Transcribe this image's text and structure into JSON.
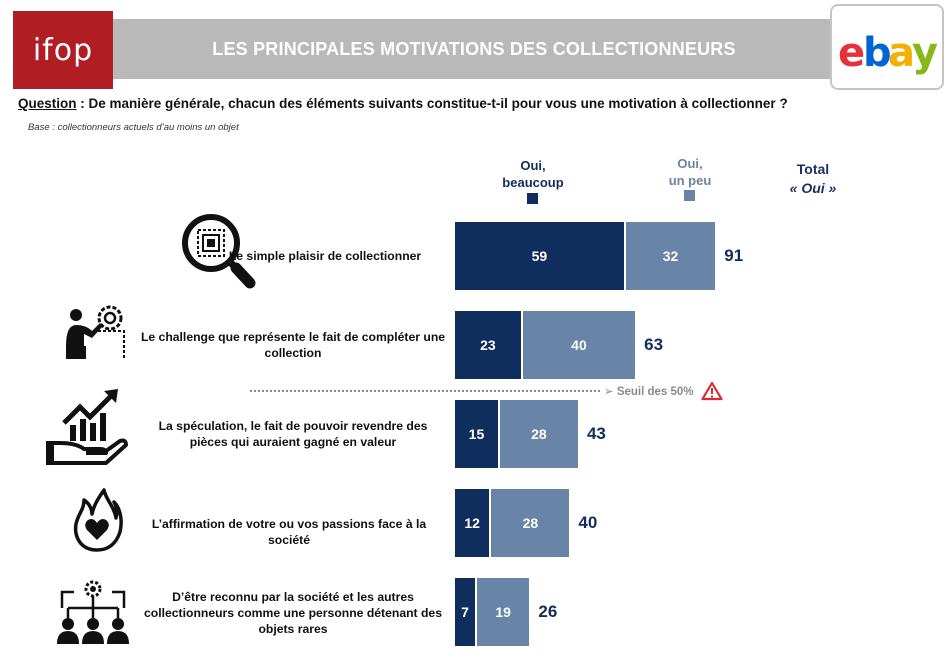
{
  "header": {
    "ifop_logo_text": "ifop",
    "title": "LES PRINCIPALES MOTIVATIONS DES COLLECTIONNEURS",
    "ebay_logo": [
      "e",
      "b",
      "a",
      "y"
    ],
    "ebay_colors": [
      "#e53238",
      "#0064d2",
      "#f5af02",
      "#86b817"
    ]
  },
  "question": {
    "label": "Question",
    "text": " : De manière générale, chacun des éléments suivants constitue-t-il pour vous une motivation à collectionner ?"
  },
  "base_note": "Base : collectionneurs actuels d’au moins un objet",
  "legend": {
    "series1": [
      "Oui,",
      "beaucoup"
    ],
    "series2": [
      "Oui,",
      "un peu"
    ],
    "total": [
      "Total",
      "« Oui »"
    ]
  },
  "threshold": {
    "label": "➢ Seuil des 50%",
    "icon": "warning-triangle-icon"
  },
  "colors": {
    "dark": "#0f2d5d",
    "light": "#6884a7",
    "ifop_red": "#b01e23",
    "title_gray": "#b9b9b9",
    "warning": "#d32f2f"
  },
  "chart_data": {
    "type": "bar",
    "orientation": "horizontal",
    "stacked": true,
    "categories": [
      "Le simple plaisir de collectionner",
      "Le challenge que représente le fait de compléter une collection",
      "La spéculation, le fait de pouvoir revendre des pièces qui auraient gagné en valeur",
      "L’affirmation de votre ou vos passions face à la société",
      "D’être reconnu par la société et les autres collectionneurs comme une personne détenant des objets rares"
    ],
    "series": [
      {
        "name": "Oui, beaucoup",
        "values": [
          59,
          23,
          15,
          12,
          7
        ],
        "color": "#0f2d5d"
      },
      {
        "name": "Oui, un peu",
        "values": [
          32,
          40,
          28,
          28,
          19
        ],
        "color": "#6884a7"
      }
    ],
    "totals": [
      91,
      63,
      43,
      40,
      26
    ],
    "threshold_value": 50,
    "icons": [
      "magnifier-stamp-icon",
      "gear-person-icon",
      "growth-hand-icon",
      "heart-flame-icon",
      "network-people-icon"
    ]
  }
}
